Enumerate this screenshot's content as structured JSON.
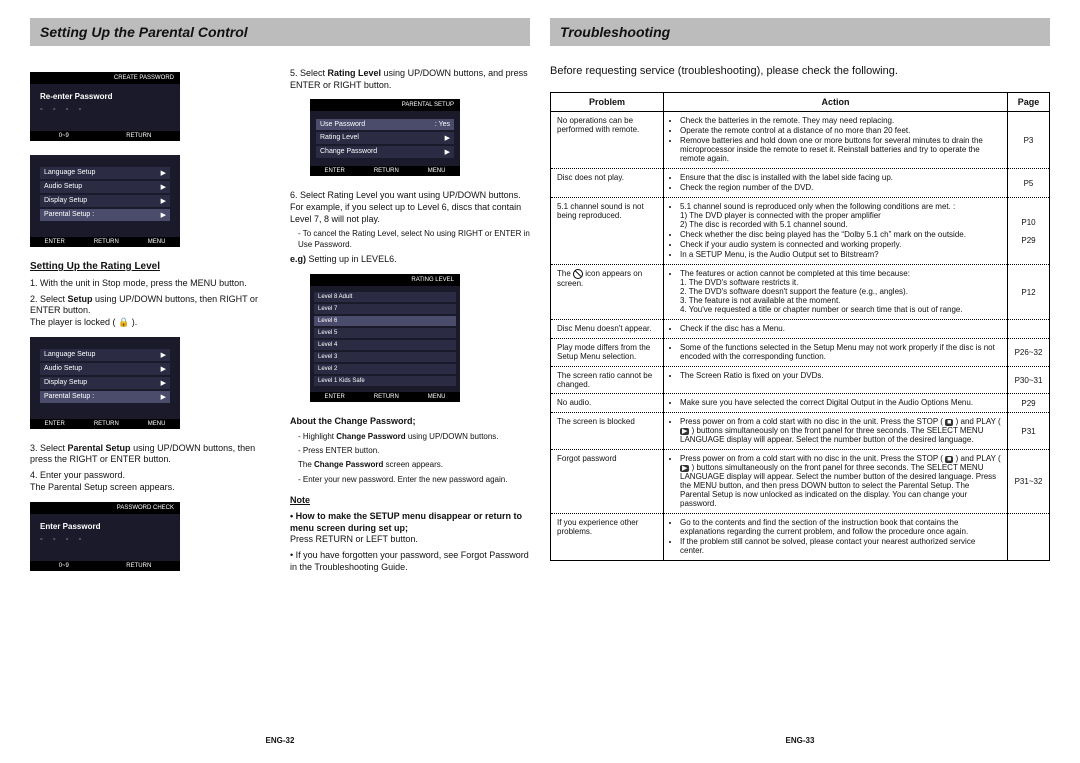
{
  "left": {
    "title": "Setting Up the Parental Control",
    "screenshot_password": {
      "top": "CREATE PASSWORD",
      "prompt": "Re-enter Password",
      "dashes": "- - - -",
      "bottom": [
        "0~9",
        "RETURN"
      ]
    },
    "screenshot_menu": {
      "items": [
        "Language Setup",
        "Audio Setup",
        "Display Setup",
        "Parental Setup :"
      ],
      "bottom": [
        "ENTER",
        "RETURN",
        "MENU"
      ]
    },
    "rating_head": "Setting Up the Rating Level",
    "step1": "1. With the unit in Stop mode, press the MENU button.",
    "step2a": "2. Select ",
    "step2b": "Setup",
    "step2c": " using UP/DOWN buttons, then RIGHT or ENTER button.",
    "step2d": "The player is locked ( 🔒 ).",
    "step3a": "3. Select ",
    "step3b": "Parental Setup",
    "step3c": " using UP/DOWN buttons, then press the RIGHT or ENTER button.",
    "step4a": "4. Enter your password.",
    "step4b": "The Parental Setup screen appears.",
    "screenshot_enter": {
      "top": "PASSWORD CHECK",
      "prompt": "Enter Password",
      "dashes": "- - - -",
      "bottom": [
        "0~9",
        "RETURN"
      ]
    },
    "col2": {
      "step5a": "5. Select ",
      "step5b": "Rating Level",
      "step5c": " using UP/DOWN buttons, and press ENTER or RIGHT button.",
      "screenshot_parental": {
        "top": "PARENTAL SETUP",
        "rows": [
          [
            "Use Password",
            ": Yes"
          ],
          [
            "Rating Level",
            ""
          ],
          [
            "Change Password",
            ""
          ]
        ],
        "bottom": [
          "ENTER",
          "RETURN",
          "MENU"
        ]
      },
      "step6": "6. Select Rating Level you want using UP/DOWN buttons. For example, if you select up to Level 6, discs that contain Level 7, 8 will not play.",
      "step6sub": "- To cancel the Rating Level, select No using RIGHT or ENTER in Use Password.",
      "eg_label": "e.g)",
      "eg_text": " Setting up in LEVEL6.",
      "screenshot_rating": {
        "top": "RATING LEVEL",
        "rows": [
          "Level 8 Adult",
          "Level 7",
          "Level 6",
          "Level 5",
          "Level 4",
          "Level 3",
          "Level 2",
          "Level 1 Kids Safe"
        ],
        "bottom": [
          "ENTER",
          "RETURN",
          "MENU"
        ]
      },
      "about_head": "About the Change Password;",
      "about1a": "- Highlight ",
      "about1b": "Change Password",
      "about1c": " using UP/DOWN buttons.",
      "about2": "- Press ENTER button.",
      "about3a": "The ",
      "about3b": "Change Password",
      "about3c": " screen appears.",
      "about4": "- Enter your new password. Enter the new password again.",
      "note_head": "Note",
      "note1": "• How to make the SETUP menu disappear or return to menu screen during set up;",
      "note1b": "Press RETURN or LEFT button.",
      "note2": "• If you have forgotten your password, see Forgot Password in the Troubleshooting Guide.",
      "footer": "ENG-32"
    }
  },
  "right": {
    "title": "Troubleshooting",
    "intro": "Before requesting service (troubleshooting), please check the following.",
    "headers": [
      "Problem",
      "Action",
      "Page"
    ],
    "rows": [
      {
        "problem": "No operations can be performed with remote.",
        "action": "<ul><li>Check the batteries in the remote. They may need replacing.</li><li>Operate the remote control at a distance of no more than 20 feet.</li><li>Remove batteries and hold down one or more buttons for several minutes to drain the microprocessor inside the remote to reset it. Reinstall batteries and try to operate the remote again.</li></ul>",
        "page": "P3"
      },
      {
        "problem": "Disc does not play.",
        "action": "<ul><li>Ensure that the disc is installed with the label side facing up.</li><li>Check the region number of the DVD.</li></ul>",
        "page": "P5"
      },
      {
        "problem": "5.1 channel sound is not being reproduced.",
        "action": "<ul><li>5.1 channel sound is reproduced only when the following conditions are met. :<br>1) The DVD player is connected with the proper amplifier<br>2) The disc is recorded with 5.1 channel sound.</li><li>Check whether the disc being played has the “Dolby 5.1 ch” mark on the outside.</li><li>Check if your audio system is connected and working properly.</li><li>In a SETUP Menu, is the Audio Output set to Bitstream?</li></ul>",
        "page": "P10<br><br>P29"
      },
      {
        "problem": "The <span class=\"prohib\"></span> icon appears on screen.",
        "action": "<ul><li>The features or action cannot be completed at this time because:<br>1. The DVD's software restricts it.<br>2. The DVD's software doesn't support the feature (e.g., angles).<br>3. The feature is not available at the moment.<br>4. You've requested a title or chapter number or search time that is out of range.</li></ul>",
        "page": "P12"
      },
      {
        "problem": "Disc Menu doesn't appear.",
        "action": "<ul><li>Check if the disc has a Menu.</li></ul>",
        "page": ""
      },
      {
        "problem": "Play mode differs from the Setup Menu selection.",
        "action": "<ul><li>Some of the functions selected in the Setup Menu may not work properly if the disc is not encoded with the corresponding function.</li></ul>",
        "page": "P26~32"
      },
      {
        "problem": "The screen ratio cannot be changed.",
        "action": "<ul><li>The Screen Ratio is fixed on your DVDs.</li></ul>",
        "page": "P30~31"
      },
      {
        "problem": "No audio.",
        "action": "<ul><li>Make sure you have selected the correct Digital Output in the Audio Options Menu.</li></ul>",
        "page": "P29"
      },
      {
        "problem": "The screen is blocked",
        "action": "<ul><li>Press power on from a cold start with no disc in the unit. Press the STOP ( <span class=\"sicon\">■</span> ) and PLAY ( <span class=\"sicon\">▶</span> ) buttons simultaneously on the front panel for three seconds. The SELECT MENU LANGUAGE display will appear. Select the number button of the desired language.</li></ul>",
        "page": "P31"
      },
      {
        "problem": "Forgot password",
        "action": "<ul><li>Press power on from a cold start with no disc in the unit. Press the STOP ( <span class=\"sicon\">■</span> ) and PLAY ( <span class=\"sicon\">▶</span> ) buttons simultaneously on the front panel for three seconds. The SELECT MENU LANGUAGE display will appear. Select the number button of the desired language. Press the MENU button, and then press DOWN button to select the Parental Setup. The Parental Setup is now unlocked as indicated on the display. You can change your password.</li></ul>",
        "page": "P31~32"
      },
      {
        "problem": "If you experience other problems.",
        "action": "<ul><li>Go to the contents and find the section of the instruction book that contains the explanations regarding the current problem, and follow the procedure once again.</li><li>If the problem still cannot be solved, please contact your nearest authorized service center.</li></ul>",
        "page": ""
      }
    ],
    "footer": "ENG-33"
  }
}
